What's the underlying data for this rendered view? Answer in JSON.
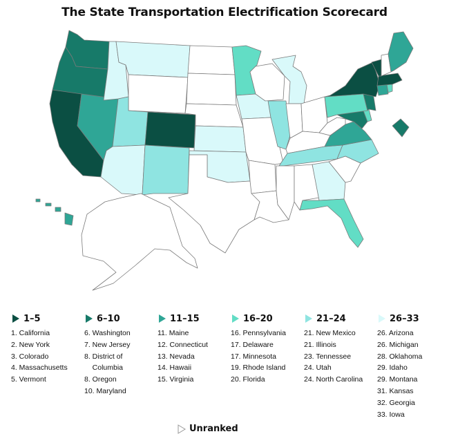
{
  "title": "The State Transportation Electrification Scorecard",
  "colors": {
    "tier1": "#0b4f43",
    "tier2": "#177a69",
    "tier3": "#2fa696",
    "tier4": "#62ddc5",
    "tier5": "#8fe4e1",
    "tier6": "#d9f9fa",
    "unranked": "#ffffff",
    "border": "#7a7a7a"
  },
  "legend": [
    {
      "range": "1–5",
      "tier": "tier1",
      "items": [
        "1. California",
        "2. New York",
        "3. Colorado",
        "4. Massachusetts",
        "5. Vermont"
      ]
    },
    {
      "range": "6–10",
      "tier": "tier2",
      "items": [
        "6. Washington",
        "7. New Jersey",
        "8. District of",
        "    Columbia",
        "8. Oregon",
        "10. Maryland"
      ]
    },
    {
      "range": "11–15",
      "tier": "tier3",
      "items": [
        "11. Maine",
        "12. Connecticut",
        "13. Nevada",
        "14. Hawaii",
        "15. Virginia"
      ]
    },
    {
      "range": "16–20",
      "tier": "tier4",
      "items": [
        "16. Pennsylvania",
        "17. Delaware",
        "17. Minnesota",
        "19. Rhode Island",
        "20. Florida"
      ]
    },
    {
      "range": "21–24",
      "tier": "tier5",
      "items": [
        "21. New Mexico",
        "21. Illinois",
        "23. Tennessee",
        "24. Utah",
        "24. North Carolina"
      ]
    },
    {
      "range": "26–33",
      "tier": "tier6",
      "items": [
        "26. Arizona",
        "26. Michigan",
        "28. Oklahoma",
        "29. Idaho",
        "29. Montana",
        "31. Kansas",
        "32. Georgia",
        "33. Iowa"
      ]
    }
  ],
  "unranked_label": "Unranked"
}
